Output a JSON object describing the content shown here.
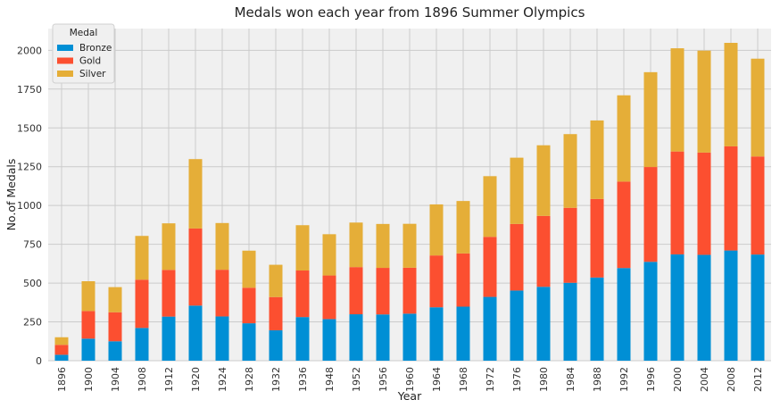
{
  "chart_data": {
    "type": "bar",
    "stacked": true,
    "title": "Medals won each year from 1896 Summer Olympics",
    "xlabel": "Year",
    "ylabel": "No.of Medals",
    "ylim": [
      0,
      2140
    ],
    "yticks": [
      0,
      250,
      500,
      750,
      1000,
      1250,
      1500,
      1750,
      2000
    ],
    "grid": true,
    "legend": {
      "title": "Medal",
      "placement": "top-left"
    },
    "categories": [
      "1896",
      "1900",
      "1904",
      "1908",
      "1912",
      "1920",
      "1924",
      "1928",
      "1932",
      "1936",
      "1948",
      "1952",
      "1956",
      "1960",
      "1964",
      "1968",
      "1972",
      "1976",
      "1980",
      "1984",
      "1988",
      "1992",
      "1996",
      "2000",
      "2004",
      "2008",
      "2012"
    ],
    "series": [
      {
        "name": "Bronze",
        "color": "#008fd5",
        "values": [
          38,
          142,
          125,
          211,
          284,
          355,
          285,
          241,
          196,
          281,
          268,
          299,
          298,
          303,
          344,
          348,
          411,
          452,
          476,
          502,
          536,
          597,
          637,
          685,
          682,
          710,
          684
        ]
      },
      {
        "name": "Gold",
        "color": "#fc4f30",
        "values": [
          64,
          178,
          187,
          311,
          301,
          497,
          301,
          229,
          214,
          300,
          281,
          304,
          300,
          296,
          334,
          343,
          387,
          429,
          457,
          483,
          506,
          557,
          611,
          663,
          659,
          671,
          632
        ]
      },
      {
        "name": "Silver",
        "color": "#e5ae38",
        "values": [
          49,
          192,
          162,
          282,
          300,
          447,
          301,
          239,
          208,
          292,
          266,
          287,
          283,
          283,
          329,
          338,
          391,
          427,
          455,
          475,
          506,
          556,
          611,
          665,
          657,
          667,
          630
        ]
      }
    ]
  }
}
